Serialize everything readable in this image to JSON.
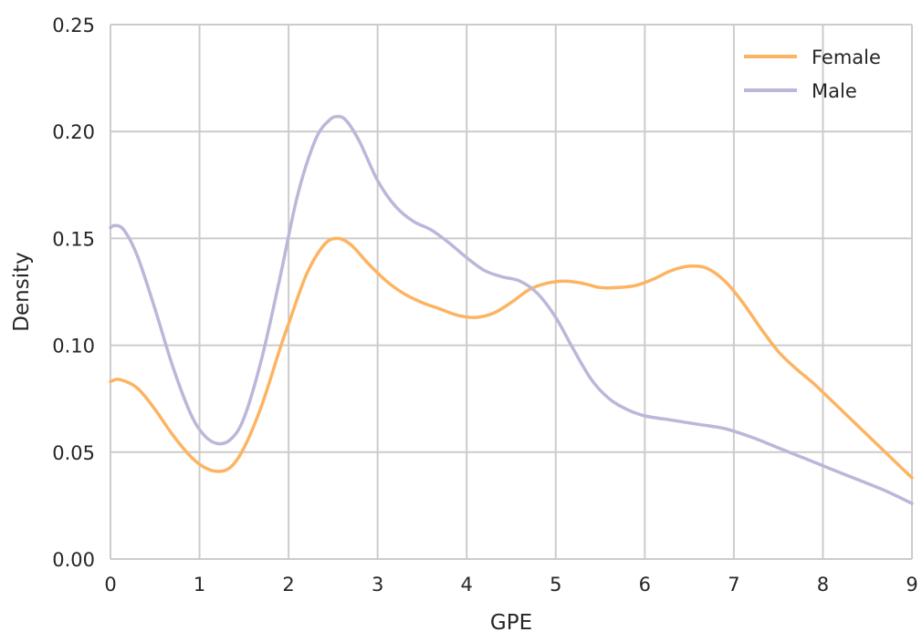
{
  "chart_data": {
    "type": "line",
    "title": "",
    "xlabel": "GPE",
    "ylabel": "Density",
    "xlim": [
      0,
      9
    ],
    "ylim": [
      0,
      0.25
    ],
    "x_ticks": [
      0,
      1,
      2,
      3,
      4,
      5,
      6,
      7,
      8,
      9
    ],
    "y_ticks": [
      "0.00",
      "0.05",
      "0.10",
      "0.15",
      "0.20",
      "0.25"
    ],
    "grid": true,
    "legend_position": "top-right",
    "series": [
      {
        "name": "Female",
        "color": "#fdb462",
        "x": [
          0,
          0.1,
          0.3,
          0.5,
          0.7,
          0.9,
          1.05,
          1.2,
          1.35,
          1.5,
          1.7,
          1.9,
          2.0,
          2.2,
          2.4,
          2.55,
          2.7,
          2.9,
          3.1,
          3.3,
          3.5,
          3.7,
          3.9,
          4.1,
          4.3,
          4.5,
          4.7,
          4.9,
          5.1,
          5.3,
          5.5,
          5.7,
          5.9,
          6.1,
          6.3,
          6.5,
          6.7,
          6.9,
          7.1,
          7.3,
          7.5,
          7.7,
          7.9,
          8.1,
          8.3,
          8.5,
          8.7,
          8.9,
          9.0
        ],
        "y": [
          0.083,
          0.084,
          0.08,
          0.07,
          0.058,
          0.048,
          0.043,
          0.041,
          0.043,
          0.052,
          0.072,
          0.098,
          0.11,
          0.133,
          0.147,
          0.15,
          0.147,
          0.138,
          0.13,
          0.124,
          0.12,
          0.117,
          0.114,
          0.113,
          0.115,
          0.12,
          0.126,
          0.129,
          0.13,
          0.129,
          0.127,
          0.127,
          0.128,
          0.131,
          0.135,
          0.137,
          0.136,
          0.13,
          0.12,
          0.108,
          0.097,
          0.089,
          0.082,
          0.074,
          0.066,
          0.058,
          0.05,
          0.042,
          0.038
        ]
      },
      {
        "name": "Male",
        "color": "#bcb7d9",
        "x": [
          0,
          0.05,
          0.15,
          0.3,
          0.5,
          0.7,
          0.9,
          1.05,
          1.2,
          1.35,
          1.5,
          1.7,
          1.9,
          2.1,
          2.3,
          2.45,
          2.55,
          2.65,
          2.8,
          3.0,
          3.2,
          3.4,
          3.6,
          3.8,
          4.0,
          4.2,
          4.4,
          4.6,
          4.8,
          5.0,
          5.2,
          5.4,
          5.6,
          5.8,
          6.0,
          6.3,
          6.6,
          6.9,
          7.2,
          7.5,
          7.8,
          8.1,
          8.4,
          8.7,
          9.0
        ],
        "y": [
          0.155,
          0.156,
          0.154,
          0.142,
          0.117,
          0.09,
          0.068,
          0.058,
          0.054,
          0.056,
          0.066,
          0.094,
          0.131,
          0.17,
          0.196,
          0.205,
          0.207,
          0.205,
          0.195,
          0.177,
          0.165,
          0.158,
          0.154,
          0.148,
          0.141,
          0.135,
          0.132,
          0.13,
          0.124,
          0.113,
          0.098,
          0.084,
          0.075,
          0.07,
          0.067,
          0.065,
          0.063,
          0.061,
          0.057,
          0.052,
          0.047,
          0.042,
          0.037,
          0.032,
          0.026
        ]
      }
    ]
  }
}
